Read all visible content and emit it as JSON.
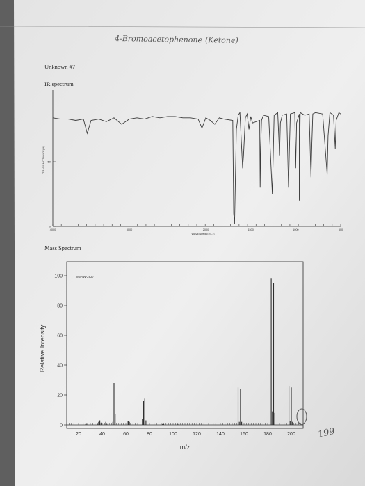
{
  "handwritten": {
    "title": "4-Bromoacetophenone",
    "class": "(Ketone)",
    "margin_note": "199"
  },
  "document": {
    "unknown_label": "Unknown #7",
    "ir_heading": "IR spectrum",
    "ms_heading": "Mass Spectrum"
  },
  "colors": {
    "paper": "#ededed",
    "ink": "#2a2a2a",
    "pencil": "#555555"
  },
  "chart_data": [
    {
      "type": "line",
      "title": "",
      "xlabel": "WAVENUMBER(-1)",
      "ylabel": "TRANSMITTANCE(%)",
      "x_ticks": [
        "4000",
        "3000",
        "2000",
        "1500",
        "1000",
        "500"
      ],
      "y_ticks": [
        "0",
        "50"
      ],
      "xlim": [
        4000,
        500
      ],
      "ylim": [
        0,
        100
      ],
      "series": [
        {
          "points": [
            [
              4000,
              84
            ],
            [
              3900,
              83
            ],
            [
              3800,
              83
            ],
            [
              3700,
              82
            ],
            [
              3600,
              83
            ],
            [
              3550,
              72
            ],
            [
              3500,
              82
            ],
            [
              3400,
              83
            ],
            [
              3300,
              81
            ],
            [
              3200,
              84
            ],
            [
              3100,
              79
            ],
            [
              3000,
              83
            ],
            [
              2900,
              84
            ],
            [
              2800,
              83
            ],
            [
              2700,
              85
            ],
            [
              2600,
              84
            ],
            [
              2500,
              85
            ],
            [
              2400,
              85
            ],
            [
              2300,
              84
            ],
            [
              2200,
              84
            ],
            [
              2100,
              83
            ],
            [
              2050,
              76
            ],
            [
              2000,
              84
            ],
            [
              1950,
              82
            ],
            [
              1900,
              79
            ],
            [
              1850,
              84
            ],
            [
              1800,
              83
            ],
            [
              1700,
              82
            ],
            [
              1690,
              10
            ],
            [
              1680,
              2
            ],
            [
              1670,
              40
            ],
            [
              1660,
              75
            ],
            [
              1640,
              86
            ],
            [
              1620,
              88
            ],
            [
              1590,
              45
            ],
            [
              1580,
              55
            ],
            [
              1560,
              84
            ],
            [
              1540,
              87
            ],
            [
              1520,
              75
            ],
            [
              1500,
              85
            ],
            [
              1480,
              80
            ],
            [
              1400,
              82
            ],
            [
              1395,
              30
            ],
            [
              1390,
              60
            ],
            [
              1380,
              82
            ],
            [
              1360,
              86
            ],
            [
              1300,
              85
            ],
            [
              1260,
              25
            ],
            [
              1250,
              55
            ],
            [
              1240,
              86
            ],
            [
              1200,
              88
            ],
            [
              1180,
              55
            ],
            [
              1170,
              80
            ],
            [
              1150,
              86
            ],
            [
              1100,
              87
            ],
            [
              1080,
              30
            ],
            [
              1070,
              60
            ],
            [
              1060,
              87
            ],
            [
              1010,
              88
            ],
            [
              1000,
              45
            ],
            [
              990,
              80
            ],
            [
              960,
              87
            ],
            [
              960,
              20
            ],
            [
              955,
              60
            ],
            [
              950,
              88
            ],
            [
              900,
              86
            ],
            [
              850,
              87
            ],
            [
              830,
              38
            ],
            [
              820,
              65
            ],
            [
              810,
              87
            ],
            [
              780,
              88
            ],
            [
              700,
              87
            ],
            [
              650,
              40
            ],
            [
              640,
              70
            ],
            [
              620,
              88
            ],
            [
              580,
              86
            ],
            [
              560,
              60
            ],
            [
              550,
              82
            ],
            [
              520,
              88
            ],
            [
              500,
              87
            ]
          ]
        }
      ]
    },
    {
      "type": "bar",
      "title": "",
      "annotation": "MS-IW-2927",
      "xlabel": "m/z",
      "ylabel": "Relative Intensity",
      "x_ticks": [
        20,
        40,
        60,
        80,
        100,
        120,
        140,
        160,
        180,
        200
      ],
      "y_ticks": [
        0,
        20,
        40,
        60,
        80,
        100
      ],
      "xlim": [
        10,
        210
      ],
      "ylim": [
        0,
        100
      ],
      "grid": false,
      "peaks": [
        [
          26,
          0.6
        ],
        [
          27,
          1.2
        ],
        [
          36,
          1.0
        ],
        [
          37,
          2.0
        ],
        [
          38,
          3.0
        ],
        [
          39,
          1.5
        ],
        [
          43,
          2.0
        ],
        [
          44,
          1.0
        ],
        [
          49,
          2.0
        ],
        [
          50,
          28.0
        ],
        [
          51,
          7.0
        ],
        [
          61,
          2.5
        ],
        [
          62,
          2.5
        ],
        [
          63,
          2.0
        ],
        [
          74,
          4.0
        ],
        [
          75,
          16.0
        ],
        [
          76,
          18.0
        ],
        [
          77,
          3.0
        ],
        [
          91,
          1.0
        ],
        [
          92,
          0.5
        ],
        [
          104,
          1.0
        ],
        [
          155,
          25.0
        ],
        [
          156,
          2.0
        ],
        [
          157,
          24.0
        ],
        [
          158,
          2.0
        ],
        [
          183,
          98.0
        ],
        [
          184,
          9.0
        ],
        [
          185,
          95.0
        ],
        [
          186,
          8.0
        ],
        [
          198,
          26.0
        ],
        [
          199,
          2.5
        ],
        [
          200,
          25.0
        ],
        [
          201,
          2.0
        ]
      ]
    }
  ]
}
